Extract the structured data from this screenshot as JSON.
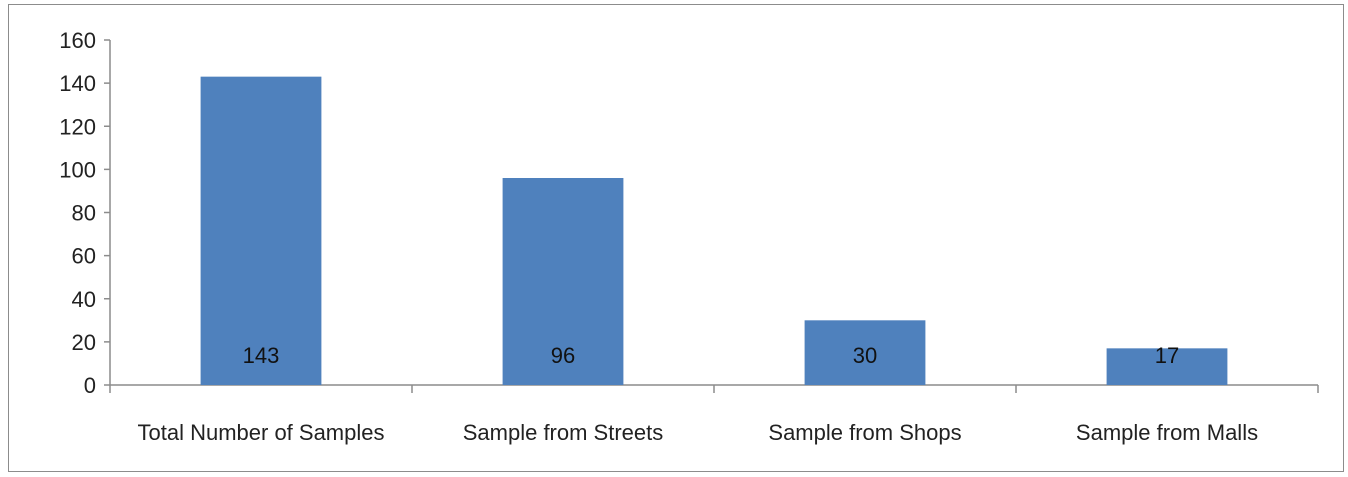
{
  "chart_data": {
    "type": "bar",
    "categories": [
      "Total Number of Samples",
      "Sample from Streets",
      "Sample from Shops",
      "Sample from Malls"
    ],
    "values": [
      143,
      96,
      30,
      17
    ],
    "data_labels": [
      "143",
      "96",
      "30",
      "17"
    ],
    "ylim": [
      0,
      160
    ],
    "yticks": [
      0,
      20,
      40,
      60,
      80,
      100,
      120,
      140,
      160
    ],
    "grid": false,
    "legend": "none",
    "bar_color": "#4f81bd"
  }
}
